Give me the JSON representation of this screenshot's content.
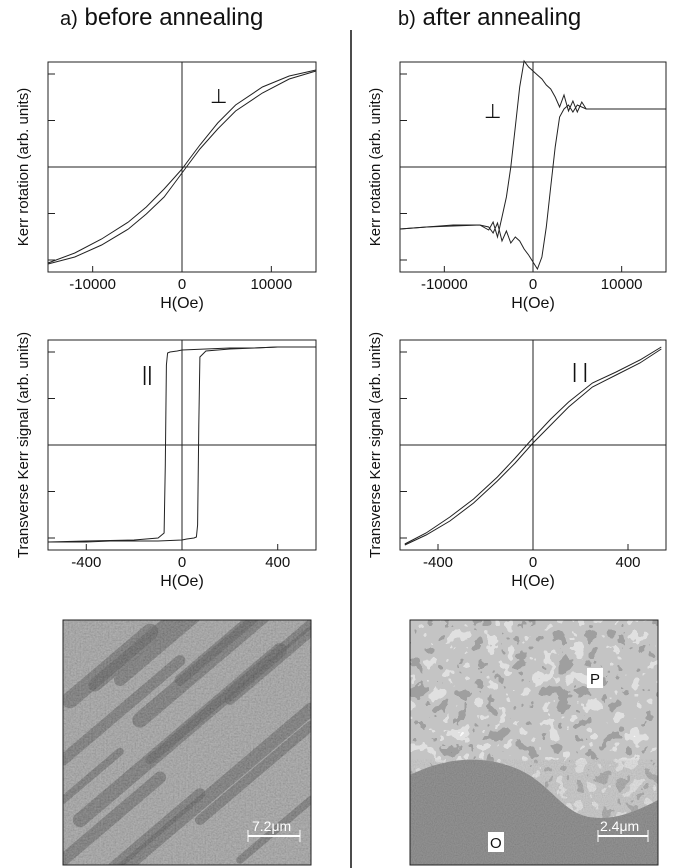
{
  "titles": {
    "left_prefix": "a)",
    "left_text": "before annealing",
    "right_prefix": "b)",
    "right_text": "after annealing"
  },
  "chart_data": [
    {
      "id": "a-top",
      "type": "line",
      "panel": "a) before annealing",
      "xlabel": "H(Oe)",
      "ylabel": "Kerr rotation (arb. units)",
      "xlim": [
        -15000,
        15000
      ],
      "ylim": [
        -1.05,
        1.05
      ],
      "xticks": [
        -10000,
        0,
        10000
      ],
      "annotation": "⊥",
      "grid": false,
      "series": [
        {
          "x": [
            -15000,
            -12000,
            -9000,
            -6000,
            -4000,
            -2000,
            -1000,
            0,
            1000,
            2000,
            4000,
            6000,
            9000,
            12000,
            15000
          ],
          "y": [
            -0.96,
            -0.86,
            -0.72,
            -0.55,
            -0.4,
            -0.22,
            -0.12,
            -0.02,
            0.1,
            0.22,
            0.44,
            0.62,
            0.8,
            0.91,
            0.97
          ]
        },
        {
          "x": [
            -15000,
            -12000,
            -9000,
            -6000,
            -4000,
            -2000,
            -1000,
            0,
            1000,
            2000,
            4000,
            6000,
            9000,
            12000,
            15000
          ],
          "y": [
            -0.97,
            -0.9,
            -0.78,
            -0.62,
            -0.47,
            -0.3,
            -0.18,
            -0.06,
            0.06,
            0.18,
            0.38,
            0.56,
            0.74,
            0.88,
            0.96
          ]
        }
      ]
    },
    {
      "id": "b-top",
      "type": "line",
      "panel": "b) after annealing",
      "xlabel": "H(Oe)",
      "ylabel": "Kerr rotation (arb. units)",
      "xlim": [
        -15000,
        15000
      ],
      "ylim": [
        -1.05,
        1.05
      ],
      "xticks": [
        -10000,
        0,
        10000
      ],
      "annotation": "⊥",
      "grid": false,
      "series": [
        {
          "x": [
            -15000,
            -12000,
            -9000,
            -6000,
            -5000,
            -4500,
            -4000,
            -3500,
            -3000,
            -2500,
            -2000,
            -1500,
            -1000,
            -500,
            0,
            500,
            1000,
            1500,
            2000,
            2500,
            3000,
            3500,
            4000,
            4500,
            5000,
            5500,
            6000,
            9000,
            12000,
            15000
          ],
          "y": [
            -0.62,
            -0.6,
            -0.59,
            -0.58,
            -0.63,
            -0.55,
            -0.7,
            -0.5,
            -0.3,
            0.0,
            0.4,
            0.8,
            1.06,
            1.0,
            0.96,
            0.92,
            0.88,
            0.82,
            0.78,
            0.7,
            0.6,
            0.72,
            0.56,
            0.66,
            0.55,
            0.65,
            0.58,
            0.58,
            0.58,
            0.58
          ]
        },
        {
          "x": [
            15000,
            12000,
            9000,
            6000,
            5000,
            4500,
            4000,
            3500,
            3000,
            2500,
            2000,
            1500,
            1000,
            500,
            0,
            -500,
            -1000,
            -1500,
            -2000,
            -2500,
            -3000,
            -3500,
            -4000,
            -4500,
            -5000,
            -6000,
            -9000,
            -12000,
            -15000
          ],
          "y": [
            0.58,
            0.58,
            0.58,
            0.58,
            0.62,
            0.55,
            0.62,
            0.58,
            0.5,
            0.2,
            -0.2,
            -0.6,
            -0.9,
            -1.02,
            -0.95,
            -0.88,
            -0.82,
            -0.74,
            -0.7,
            -0.76,
            -0.64,
            -0.74,
            -0.56,
            -0.66,
            -0.6,
            -0.58,
            -0.58,
            -0.6,
            -0.62
          ]
        }
      ]
    },
    {
      "id": "a-mid",
      "type": "line",
      "panel": "a) before annealing",
      "xlabel": "H(Oe)",
      "ylabel": "Transverse Kerr signal (arb. units)",
      "xlim": [
        -560,
        560
      ],
      "ylim": [
        -1.05,
        1.05
      ],
      "xticks": [
        -400,
        0,
        400
      ],
      "annotation": "||",
      "grid": false,
      "series": [
        {
          "x": [
            -560,
            -400,
            -200,
            -100,
            -75,
            -70,
            -65,
            -60,
            -50,
            -20,
            0,
            100,
            200,
            300,
            400,
            560
          ],
          "y": [
            -0.97,
            -0.96,
            -0.95,
            -0.93,
            -0.88,
            -0.2,
            0.8,
            0.92,
            0.93,
            0.94,
            0.95,
            0.96,
            0.97,
            0.97,
            0.98,
            0.98
          ]
        },
        {
          "x": [
            560,
            400,
            200,
            100,
            75,
            70,
            65,
            60,
            50,
            20,
            0,
            -100,
            -200,
            -300,
            -400,
            -560
          ],
          "y": [
            0.98,
            0.98,
            0.96,
            0.94,
            0.88,
            0.2,
            -0.8,
            -0.92,
            -0.93,
            -0.94,
            -0.95,
            -0.96,
            -0.96,
            -0.96,
            -0.97,
            -0.97
          ]
        }
      ]
    },
    {
      "id": "b-mid",
      "type": "line",
      "panel": "b) after annealing",
      "xlabel": "H(Oe)",
      "ylabel": "Transverse Kerr signal (arb. units)",
      "xlim": [
        -560,
        560
      ],
      "ylim": [
        -1.05,
        1.05
      ],
      "xticks": [
        -400,
        0,
        400
      ],
      "annotation": "| |",
      "grid": false,
      "series": [
        {
          "x": [
            -540,
            -450,
            -350,
            -250,
            -150,
            -75,
            0,
            75,
            150,
            250,
            350,
            450,
            540
          ],
          "y": [
            -1.0,
            -0.9,
            -0.76,
            -0.58,
            -0.36,
            -0.18,
            0.02,
            0.2,
            0.38,
            0.58,
            0.7,
            0.82,
            0.96
          ]
        },
        {
          "x": [
            540,
            450,
            350,
            250,
            150,
            75,
            0,
            -75,
            -150,
            -250,
            -350,
            -450,
            -540
          ],
          "y": [
            0.98,
            0.85,
            0.73,
            0.62,
            0.43,
            0.26,
            0.07,
            -0.13,
            -0.32,
            -0.54,
            -0.72,
            -0.88,
            -0.99
          ]
        }
      ]
    }
  ],
  "images": {
    "left": {
      "scale_text": "7.2μm"
    },
    "right": {
      "scale_text": "2.4μm",
      "label_p": "P",
      "label_o": "O"
    }
  }
}
